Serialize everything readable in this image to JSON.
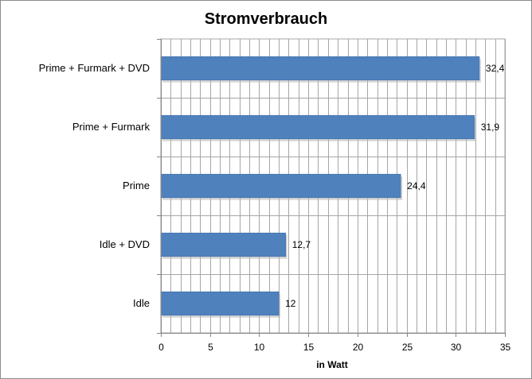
{
  "chart_data": {
    "type": "bar",
    "orientation": "horizontal",
    "title": "Stromverbrauch",
    "xlabel": "in Watt",
    "ylabel": "",
    "categories": [
      "Idle",
      "Idle + DVD",
      "Prime",
      "Prime + Furmark",
      "Prime + Furmark + DVD"
    ],
    "values": [
      12,
      12.7,
      24.4,
      31.9,
      32.4
    ],
    "value_labels": [
      "12",
      "12,7",
      "24,4",
      "31,9",
      "32,4"
    ],
    "xlim": [
      0,
      35
    ],
    "xticks": [
      0,
      5,
      10,
      15,
      20,
      25,
      30,
      35
    ],
    "minor_gridline_step": 1,
    "grid": true,
    "legend": "none",
    "colors": {
      "bar": "#4F81BD",
      "grid": "#a6a6a6",
      "axis": "#868686"
    }
  }
}
